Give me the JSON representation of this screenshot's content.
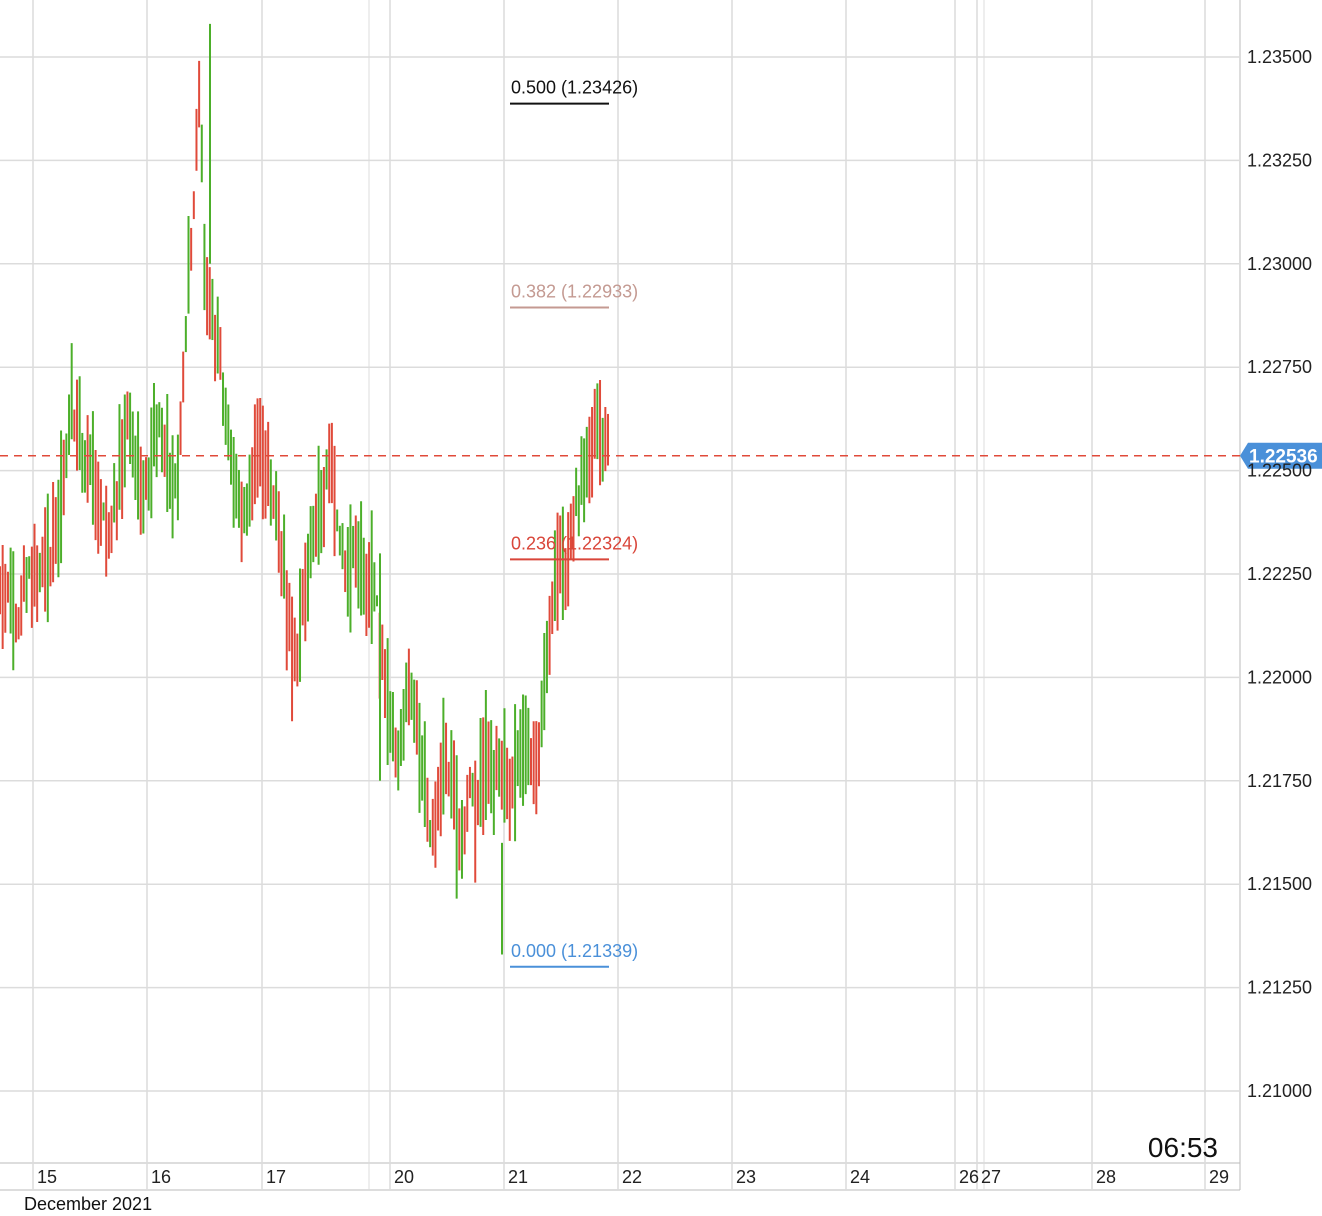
{
  "chart_data": {
    "type": "candlestick",
    "symbol": "",
    "y_axis": {
      "ticks": [
        "1.21000",
        "1.21250",
        "1.21500",
        "1.21750",
        "1.22000",
        "1.22250",
        "1.22500",
        "1.22750",
        "1.23000",
        "1.23250",
        "1.23500"
      ],
      "ylim": [
        1.2082,
        1.2363
      ],
      "grid": true
    },
    "x_axis": {
      "ticks": [
        "15",
        "16",
        "17",
        "20",
        "21",
        "22",
        "23",
        "24",
        "26",
        "27",
        "28",
        "29"
      ],
      "month_label": "December 2021",
      "grid": true
    },
    "current_price": {
      "value": 1.22536,
      "label": "1.22536",
      "color": "#4a90d9",
      "line_color": "#e04a3a"
    },
    "fibonacci": [
      {
        "ratio": "0.500",
        "price": 1.23426,
        "label": "0.500 (1.23426)",
        "color": "#111111"
      },
      {
        "ratio": "0.382",
        "price": 1.22933,
        "label": "0.382 (1.22933)",
        "color": "#c49a92"
      },
      {
        "ratio": "0.236",
        "price": 1.22324,
        "label": "0.236 (1.22324)",
        "color": "#d9463a"
      },
      {
        "ratio": "0.000",
        "price": 1.21339,
        "label": "0.000 (1.21339)",
        "color": "#4a90d9"
      }
    ],
    "clock": "06:53",
    "colors": {
      "up": "#4caf2a",
      "down": "#e04a3a",
      "grid": "#dcdcdc"
    },
    "candles_close_path": [
      1.222,
      1.2225,
      1.2218,
      1.2212,
      1.2222,
      1.2228,
      1.2223,
      1.223,
      1.2228,
      1.2234,
      1.224,
      1.2255,
      1.2265,
      1.226,
      1.2255,
      1.225,
      1.2245,
      1.2238,
      1.2232,
      1.224,
      1.225,
      1.2262,
      1.2258,
      1.225,
      1.2242,
      1.225,
      1.2262,
      1.2258,
      1.225,
      1.2245,
      1.226,
      1.229,
      1.231,
      1.2345,
      1.23,
      1.2285,
      1.228,
      1.227,
      1.226,
      1.2248,
      1.2238,
      1.2242,
      1.225,
      1.2258,
      1.2252,
      1.2246,
      1.224,
      1.223,
      1.2215,
      1.2205,
      1.2212,
      1.2225,
      1.2235,
      1.224,
      1.2246,
      1.2252,
      1.224,
      1.223,
      1.2225,
      1.2232,
      1.2228,
      1.222,
      1.2225,
      1.2212,
      1.2198,
      1.2188,
      1.218,
      1.219,
      1.22,
      1.2192,
      1.2178,
      1.2168,
      1.2162,
      1.2172,
      1.218,
      1.2175,
      1.216,
      1.2165,
      1.2175,
      1.217,
      1.2178,
      1.218,
      1.2175,
      1.2182,
      1.2176,
      1.217,
      1.2178,
      1.2185,
      1.218,
      1.2178,
      1.219,
      1.2205,
      1.222,
      1.223,
      1.2225,
      1.2238,
      1.2245,
      1.225,
      1.2255,
      1.2258,
      1.2256,
      1.2254
    ]
  }
}
